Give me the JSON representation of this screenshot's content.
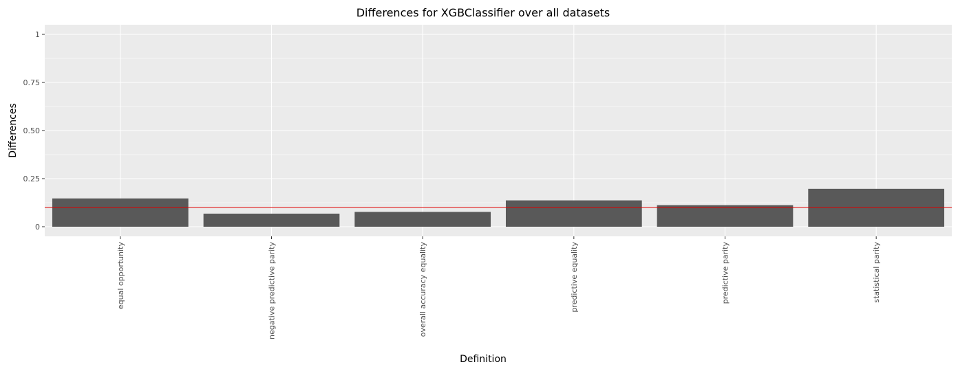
{
  "chart_data": {
    "type": "bar",
    "title": "Differences for XGBClassifier over all datasets",
    "xlabel": "Definition",
    "ylabel": "Differences",
    "categories": [
      "equal opportunity",
      "negative predictive parity",
      "overall accuracy equality",
      "predictive equality",
      "predictive parity",
      "statistical parity"
    ],
    "values": [
      0.147,
      0.068,
      0.077,
      0.137,
      0.112,
      0.197
    ],
    "ylim": [
      -0.05,
      1.05
    ],
    "yticks": [
      0,
      0.25,
      0.5,
      0.75,
      1
    ],
    "ytick_labels": [
      "0",
      "0.25",
      "0.50",
      "0.75",
      "1"
    ],
    "reference_line": 0.1,
    "reference_line_color": "#e00000",
    "bar_color": "#595959",
    "panel_color": "#ebebeb",
    "grid": true
  }
}
